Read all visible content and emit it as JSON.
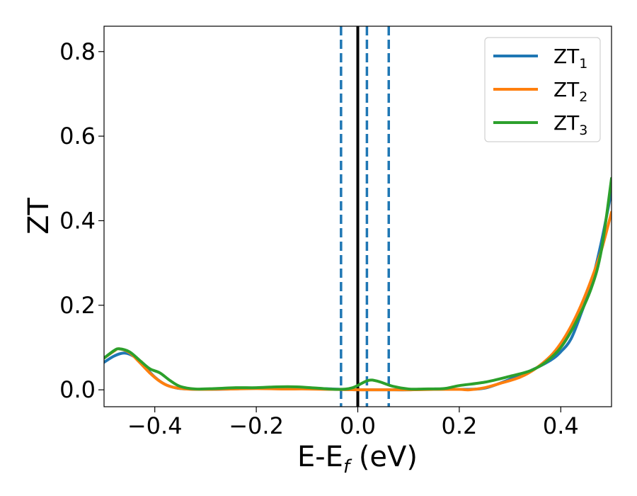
{
  "chart_data": {
    "type": "line",
    "xlabel": "E-E",
    "xlabel_sub": "f",
    "xlabel_unit": " (eV)",
    "ylabel": "ZT",
    "xlim": [
      -0.5,
      0.5
    ],
    "ylim": [
      -0.04,
      0.86
    ],
    "xticks": [
      -0.4,
      -0.2,
      0.0,
      0.2,
      0.4
    ],
    "xtick_labels": [
      "−0.4",
      "−0.2",
      "0.0",
      "0.2",
      "0.4"
    ],
    "yticks": [
      0.0,
      0.2,
      0.4,
      0.6,
      0.8
    ],
    "ytick_labels": [
      "0.0",
      "0.2",
      "0.4",
      "0.6",
      "0.8"
    ],
    "grid": false,
    "legend_position": "top-right",
    "vlines": [
      {
        "x": 0.0,
        "style": "solid",
        "color": "#000000"
      },
      {
        "x": -0.033,
        "style": "dashed",
        "color": "#1f77b4"
      },
      {
        "x": 0.018,
        "style": "dashed",
        "color": "#1f77b4"
      },
      {
        "x": 0.061,
        "style": "dashed",
        "color": "#1f77b4"
      }
    ],
    "series": [
      {
        "name": "ZT",
        "sub": "1",
        "color": "#1f77b4",
        "points": [
          [
            -0.5,
            0.065
          ],
          [
            -0.48,
            0.08
          ],
          [
            -0.46,
            0.087
          ],
          [
            -0.44,
            0.078
          ],
          [
            -0.42,
            0.055
          ],
          [
            -0.4,
            0.03
          ],
          [
            -0.38,
            0.013
          ],
          [
            -0.36,
            0.005
          ],
          [
            -0.34,
            0.002
          ],
          [
            -0.3,
            0.001
          ],
          [
            -0.25,
            0.002
          ],
          [
            -0.2,
            0.004
          ],
          [
            -0.15,
            0.004
          ],
          [
            -0.1,
            0.004
          ],
          [
            -0.05,
            0.002
          ],
          [
            -0.03,
            0.001
          ],
          [
            0.0,
            0.0
          ],
          [
            0.03,
            0.0
          ],
          [
            0.06,
            0.0
          ],
          [
            0.1,
            0.0
          ],
          [
            0.15,
            0.002
          ],
          [
            0.2,
            0.001
          ],
          [
            0.25,
            0.004
          ],
          [
            0.3,
            0.025
          ],
          [
            0.34,
            0.045
          ],
          [
            0.38,
            0.07
          ],
          [
            0.4,
            0.09
          ],
          [
            0.42,
            0.12
          ],
          [
            0.44,
            0.18
          ],
          [
            0.46,
            0.25
          ],
          [
            0.48,
            0.35
          ],
          [
            0.5,
            0.47
          ]
        ]
      },
      {
        "name": "ZT",
        "sub": "2",
        "color": "#ff7f0e",
        "points": [
          [
            -0.5,
            0.075
          ],
          [
            -0.48,
            0.092
          ],
          [
            -0.47,
            0.097
          ],
          [
            -0.45,
            0.088
          ],
          [
            -0.43,
            0.065
          ],
          [
            -0.41,
            0.04
          ],
          [
            -0.39,
            0.02
          ],
          [
            -0.37,
            0.008
          ],
          [
            -0.34,
            0.002
          ],
          [
            -0.3,
            0.001
          ],
          [
            -0.25,
            0.002
          ],
          [
            -0.2,
            0.003
          ],
          [
            -0.15,
            0.002
          ],
          [
            -0.1,
            0.002
          ],
          [
            -0.05,
            0.001
          ],
          [
            0.0,
            0.0
          ],
          [
            0.05,
            0.0
          ],
          [
            0.1,
            0.0
          ],
          [
            0.15,
            0.001
          ],
          [
            0.2,
            0.001
          ],
          [
            0.22,
            0.0
          ],
          [
            0.25,
            0.005
          ],
          [
            0.28,
            0.015
          ],
          [
            0.32,
            0.03
          ],
          [
            0.35,
            0.05
          ],
          [
            0.38,
            0.08
          ],
          [
            0.4,
            0.11
          ],
          [
            0.42,
            0.15
          ],
          [
            0.44,
            0.2
          ],
          [
            0.46,
            0.26
          ],
          [
            0.48,
            0.33
          ],
          [
            0.5,
            0.42
          ]
        ]
      },
      {
        "name": "ZT",
        "sub": "3",
        "color": "#2ca02c",
        "points": [
          [
            -0.5,
            0.075
          ],
          [
            -0.48,
            0.093
          ],
          [
            -0.47,
            0.097
          ],
          [
            -0.45,
            0.09
          ],
          [
            -0.43,
            0.07
          ],
          [
            -0.41,
            0.05
          ],
          [
            -0.39,
            0.04
          ],
          [
            -0.37,
            0.022
          ],
          [
            -0.35,
            0.008
          ],
          [
            -0.32,
            0.002
          ],
          [
            -0.28,
            0.003
          ],
          [
            -0.24,
            0.005
          ],
          [
            -0.2,
            0.005
          ],
          [
            -0.16,
            0.007
          ],
          [
            -0.12,
            0.007
          ],
          [
            -0.08,
            0.004
          ],
          [
            -0.04,
            0.001
          ],
          [
            -0.01,
            0.005
          ],
          [
            0.02,
            0.022
          ],
          [
            0.04,
            0.02
          ],
          [
            0.07,
            0.008
          ],
          [
            0.1,
            0.002
          ],
          [
            0.13,
            0.002
          ],
          [
            0.17,
            0.003
          ],
          [
            0.2,
            0.01
          ],
          [
            0.25,
            0.018
          ],
          [
            0.3,
            0.032
          ],
          [
            0.34,
            0.045
          ],
          [
            0.37,
            0.065
          ],
          [
            0.4,
            0.1
          ],
          [
            0.43,
            0.16
          ],
          [
            0.46,
            0.24
          ],
          [
            0.48,
            0.33
          ],
          [
            0.5,
            0.5
          ]
        ]
      }
    ]
  }
}
